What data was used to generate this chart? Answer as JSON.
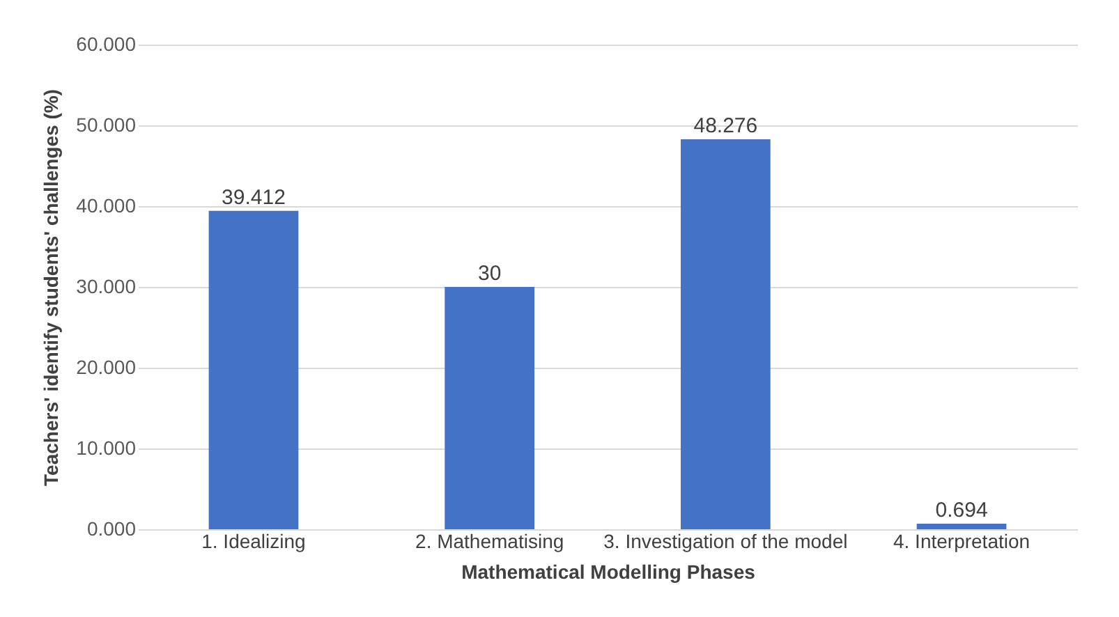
{
  "chart_data": {
    "type": "bar",
    "xlabel": "Mathematical Modelling Phases",
    "ylabel": "Teachers' identify students' challenges (%)",
    "categories": [
      "1. Idealizing",
      "2. Mathematising",
      "3. Investigation of the model",
      "4. Interpretation"
    ],
    "values": [
      39.412,
      30,
      48.276,
      0.694
    ],
    "color": "#4472c4",
    "data_labels": true,
    "ylim": [
      0,
      60
    ],
    "yticks": [
      {
        "value": 0,
        "label": "0.000"
      },
      {
        "value": 10,
        "label": "10.000"
      },
      {
        "value": 20,
        "label": "20.000"
      },
      {
        "value": 30,
        "label": "30.000"
      },
      {
        "value": 40,
        "label": "40.000"
      },
      {
        "value": 50,
        "label": "50.000"
      },
      {
        "value": 60,
        "label": "60.000"
      }
    ],
    "grid": "y"
  }
}
